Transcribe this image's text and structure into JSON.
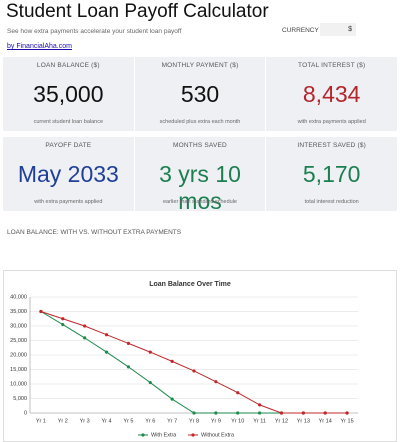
{
  "header": {
    "title": "Student Loan Payoff Calculator",
    "subtitle": "See how extra payments accelerate your student loan payoff",
    "currency_label": "CURRENCY",
    "currency_value": "$",
    "credit": "by FinancialAha.com"
  },
  "cards": [
    {
      "label": "LOAN BALANCE ($)",
      "value": "35,000",
      "caption": "current student loan balance"
    },
    {
      "label": "MONTHLY PAYMENT ($)",
      "value": "530",
      "caption": "scheduled plus extra each month"
    },
    {
      "label": "TOTAL INTEREST ($)",
      "value": "8,434",
      "caption": "with extra payments applied"
    },
    {
      "label": "PAYOFF DATE",
      "value": "May 2033",
      "caption": "with extra payments applied"
    },
    {
      "label": "MONTHS SAVED",
      "value": "3 yrs 10 mos",
      "caption": "earlier than standard schedule"
    },
    {
      "label": "INTEREST SAVED ($)",
      "value": "5,170",
      "caption": "total interest reduction"
    }
  ],
  "section_label": "LOAN BALANCE: WITH VS. WITHOUT EXTRA PAYMENTS",
  "chart_data": {
    "type": "line",
    "title": "Loan Balance Over Time",
    "categories": [
      "Yr 1",
      "Yr 2",
      "Yr 3",
      "Yr 4",
      "Yr 5",
      "Yr 6",
      "Yr 7",
      "Yr 8",
      "Yr 9",
      "Yr 10",
      "Yr 11",
      "Yr 12",
      "Yr 13",
      "Yr 14",
      "Yr 15"
    ],
    "series": [
      {
        "name": "With Extra",
        "color": "#1e8a4c",
        "values": [
          35000,
          30500,
          25900,
          21000,
          15900,
          10500,
          4800,
          0,
          0,
          0,
          0,
          0,
          0,
          0,
          0
        ]
      },
      {
        "name": "Without Extra",
        "color": "#c0282d",
        "values": [
          35000,
          32500,
          30000,
          27000,
          24000,
          21000,
          17800,
          14500,
          10800,
          7000,
          2800,
          0,
          0,
          0,
          0
        ]
      }
    ],
    "ylim": [
      0,
      40000
    ],
    "yticks": [
      0,
      {
        "value": 5000,
        "label": "5,000"
      },
      {
        "value": 10000,
        "label": "10,000"
      },
      {
        "value": 15000,
        "label": "15,000"
      },
      {
        "value": 20000,
        "label": "20,000"
      },
      {
        "value": 25000,
        "label": "25,000"
      },
      {
        "value": 30000,
        "label": "30,000"
      },
      {
        "value": 35000,
        "label": "35,000"
      },
      {
        "value": 40000,
        "label": "40,000"
      }
    ],
    "grid": true,
    "legend": "bottom"
  }
}
